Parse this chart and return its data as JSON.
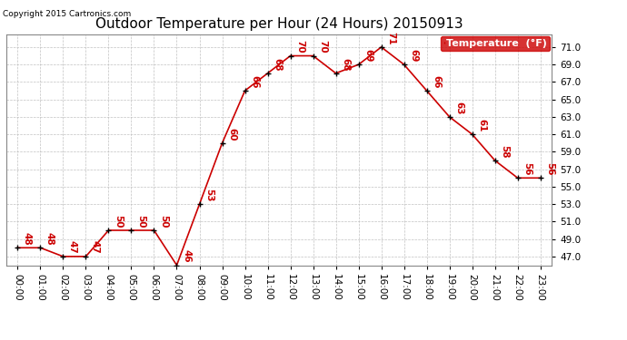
{
  "title": "Outdoor Temperature per Hour (24 Hours) 20150913",
  "copyright": "Copyright 2015 Cartronics.com",
  "legend_label": "Temperature  (°F)",
  "hours": [
    "00:00",
    "01:00",
    "02:00",
    "03:00",
    "04:00",
    "05:00",
    "06:00",
    "07:00",
    "08:00",
    "09:00",
    "10:00",
    "11:00",
    "12:00",
    "13:00",
    "14:00",
    "15:00",
    "16:00",
    "17:00",
    "18:00",
    "19:00",
    "20:00",
    "21:00",
    "22:00",
    "23:00"
  ],
  "temperatures": [
    48,
    48,
    47,
    47,
    50,
    50,
    50,
    46,
    53,
    60,
    66,
    68,
    70,
    70,
    68,
    69,
    71,
    69,
    66,
    63,
    61,
    58,
    56,
    56
  ],
  "line_color": "#cc0000",
  "marker_color": "#000000",
  "label_color": "#cc0000",
  "background_color": "#ffffff",
  "grid_color": "#bbbbbb",
  "ylim": [
    46.0,
    72.5
  ],
  "yticks": [
    47.0,
    49.0,
    51.0,
    53.0,
    55.0,
    57.0,
    59.0,
    61.0,
    63.0,
    65.0,
    67.0,
    69.0,
    71.0
  ],
  "title_fontsize": 11,
  "tick_fontsize": 7.5,
  "label_fontsize": 7.5,
  "copyright_fontsize": 6.5,
  "legend_bg": "#cc0000",
  "legend_text_color": "#ffffff",
  "legend_fontsize": 8
}
